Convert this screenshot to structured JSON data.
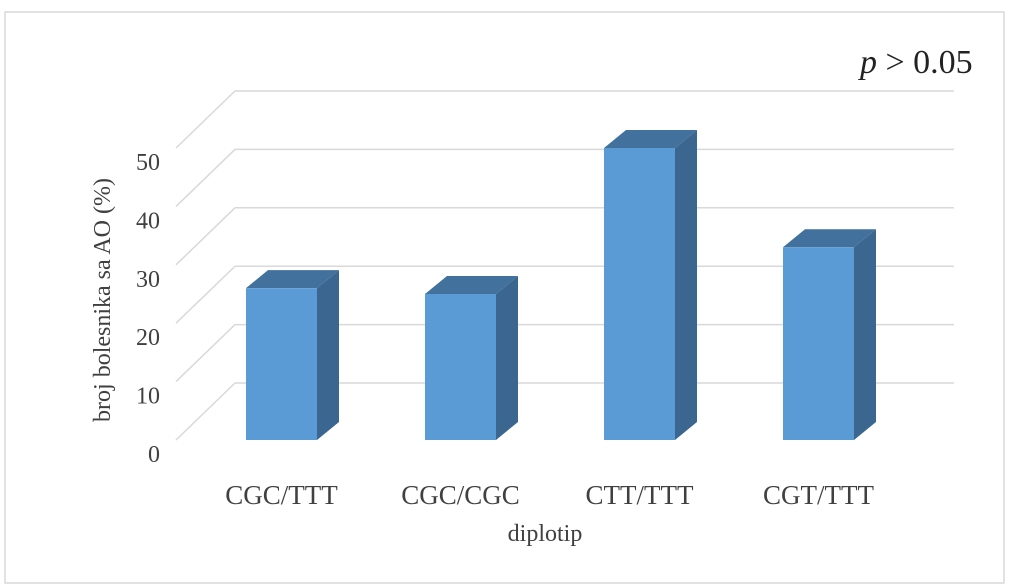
{
  "annotation": {
    "prefix": "p",
    "text": " > 0.05"
  },
  "chart_data": {
    "type": "bar",
    "categories": [
      "CGC/TTT",
      "CGC/CGC",
      "CTT/TTT",
      "CGT/TTT"
    ],
    "values": [
      26,
      25,
      50,
      33
    ],
    "title": "",
    "xlabel": "diplotip",
    "ylabel": "broj bolesnika sa AO (%)",
    "ylim": [
      0,
      50
    ],
    "yticks": [
      0,
      10,
      20,
      30,
      40,
      50
    ],
    "grid": true,
    "legend": "none",
    "style": "3d-column"
  },
  "colors": {
    "bar_front": "#5b9bd5",
    "bar_top": "#41719c",
    "bar_side": "#3a6690",
    "grid": "#d9d9d9",
    "text": "#404040",
    "frame": "#d9d9d9"
  }
}
